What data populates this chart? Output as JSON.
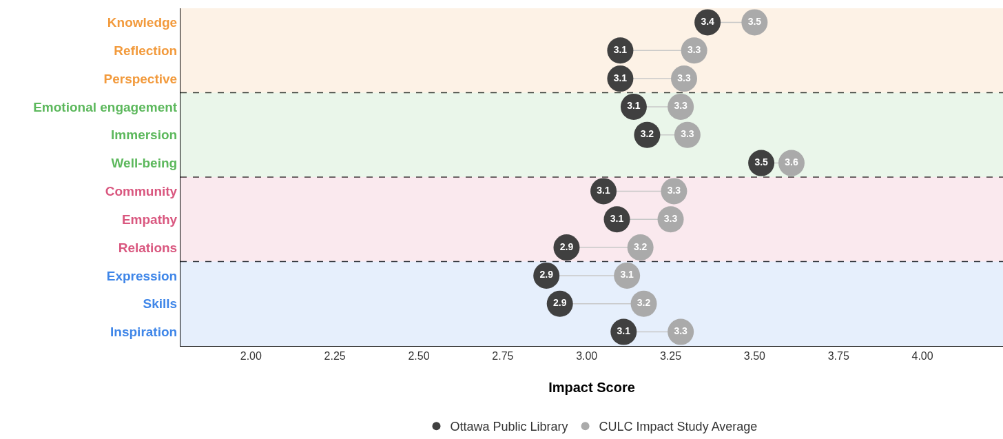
{
  "chart_data": {
    "type": "scatter",
    "orientation": "horizontal",
    "xlabel": "Impact Score",
    "categories": [
      "Knowledge",
      "Reflection",
      "Perspective",
      "Emotional engagement",
      "Immersion",
      "Well-being",
      "Community",
      "Empathy",
      "Relations",
      "Expression",
      "Skills",
      "Inspiration"
    ],
    "series": [
      {
        "name": "Ottawa Public Library",
        "color": "#404040",
        "values": [
          3.36,
          3.1,
          3.1,
          3.14,
          3.18,
          3.52,
          3.05,
          3.09,
          2.94,
          2.88,
          2.92,
          3.11
        ],
        "value_labels": [
          "3.4",
          "3.1",
          "3.1",
          "3.1",
          "3.2",
          "3.5",
          "3.1",
          "3.1",
          "2.9",
          "2.9",
          "2.9",
          "3.1"
        ]
      },
      {
        "name": "CULC Impact Study Average",
        "color": "#aaaaaa",
        "values": [
          3.5,
          3.32,
          3.29,
          3.28,
          3.3,
          3.61,
          3.26,
          3.25,
          3.16,
          3.12,
          3.17,
          3.28
        ],
        "value_labels": [
          "3.5",
          "3.3",
          "3.3",
          "3.3",
          "3.3",
          "3.6",
          "3.3",
          "3.3",
          "3.2",
          "3.1",
          "3.2",
          "3.3"
        ]
      }
    ],
    "xlim": [
      1.79,
      4.24
    ],
    "xticks": [
      {
        "value": 2,
        "label": "2.00"
      },
      {
        "value": 2.25,
        "label": "2.25"
      },
      {
        "value": 2.5,
        "label": "2.50"
      },
      {
        "value": 2.75,
        "label": "2.75"
      },
      {
        "value": 3,
        "label": "3.00"
      },
      {
        "value": 3.25,
        "label": "3.25"
      },
      {
        "value": 3.5,
        "label": "3.50"
      },
      {
        "value": 3.75,
        "label": "3.75"
      },
      {
        "value": 4,
        "label": "4.00"
      }
    ],
    "bands": [
      {
        "axis": "y",
        "from": "Knowledge",
        "to": "Perspective",
        "color": "#f29a3c"
      },
      {
        "axis": "y",
        "from": "Emotional engagement",
        "to": "Well-being",
        "color": "#5cb85c"
      },
      {
        "axis": "y",
        "from": "Community",
        "to": "Relations",
        "color": "#d9577f"
      },
      {
        "axis": "y",
        "from": "Expression",
        "to": "Inspiration",
        "color": "#3f86e8"
      }
    ],
    "marker": "circle",
    "grid": false,
    "legend": "bottom"
  }
}
